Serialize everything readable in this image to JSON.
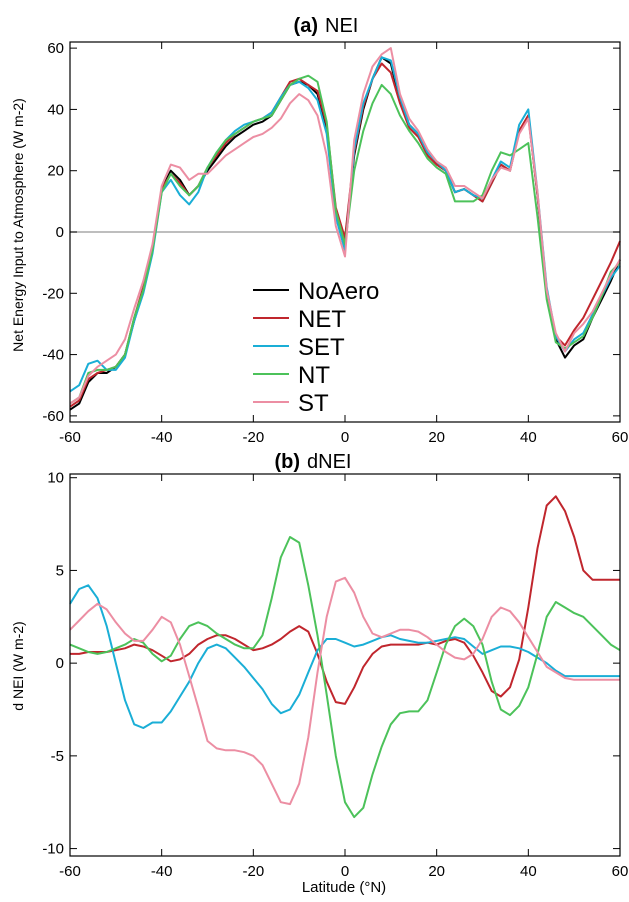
{
  "colors": {
    "NoAero": "#000000",
    "NET": "#c0262d",
    "SET": "#1aaed6",
    "NT": "#4cc25a",
    "ST": "#ec8ea3",
    "zero_line": "#a8a8a8",
    "axis": "#000000"
  },
  "chart_data": [
    {
      "type": "line",
      "title_tag": "(a)",
      "title": "NEI",
      "xlabel": "",
      "ylabel": "Net Energy Input to Atmosphere (W m-2)",
      "xlim": [
        -60,
        60
      ],
      "ylim": [
        -62,
        62
      ],
      "xticks": [
        -60,
        -40,
        -20,
        0,
        20,
        40,
        60
      ],
      "yticks": [
        -60,
        -40,
        -20,
        0,
        20,
        40,
        60
      ],
      "zero_line": true,
      "grid": false,
      "legend": {
        "position": "lower-center",
        "entries": [
          "NoAero",
          "NET",
          "SET",
          "NT",
          "ST"
        ]
      },
      "x": [
        -60,
        -58,
        -56,
        -54,
        -52,
        -50,
        -48,
        -46,
        -44,
        -42,
        -40,
        -38,
        -36,
        -34,
        -32,
        -30,
        -28,
        -26,
        -24,
        -22,
        -20,
        -18,
        -16,
        -14,
        -12,
        -10,
        -8,
        -6,
        -4,
        -2,
        0,
        2,
        4,
        6,
        8,
        10,
        12,
        14,
        16,
        18,
        20,
        22,
        24,
        26,
        28,
        30,
        32,
        34,
        36,
        38,
        40,
        42,
        44,
        46,
        48,
        50,
        52,
        54,
        56,
        58,
        60
      ],
      "series": [
        {
          "name": "NoAero",
          "values": [
            -58,
            -56,
            -49,
            -46,
            -46,
            -44,
            -40,
            -29,
            -19,
            -5,
            14,
            20,
            17,
            12,
            15,
            20,
            24,
            28,
            31,
            33,
            35,
            36,
            38,
            43,
            48,
            49,
            48,
            45,
            34,
            7,
            -3,
            25,
            40,
            50,
            57,
            55,
            43,
            35,
            32,
            25,
            22,
            20,
            13,
            14,
            12,
            10,
            16,
            22,
            20,
            33,
            38,
            12,
            -20,
            -35,
            -41,
            -37,
            -35,
            -28,
            -22,
            -16,
            -9
          ]
        },
        {
          "name": "NET",
          "values": [
            -57,
            -55,
            -48,
            -46,
            -45,
            -44,
            -40,
            -28,
            -18,
            -5,
            14,
            19,
            16,
            12,
            15,
            21,
            25,
            29,
            32,
            34,
            36,
            37,
            39,
            44,
            49,
            50,
            48,
            46,
            35,
            8,
            -2,
            26,
            41,
            50,
            55,
            52,
            42,
            34,
            31,
            25,
            22,
            20,
            13,
            14,
            12,
            10,
            16,
            22,
            20,
            33,
            38,
            12,
            -19,
            -34,
            -37,
            -32,
            -28,
            -22,
            -16,
            -10,
            -3
          ]
        },
        {
          "name": "SET",
          "values": [
            -52,
            -50,
            -43,
            -42,
            -45,
            -45,
            -41,
            -29,
            -20,
            -7,
            13,
            17,
            12,
            9,
            13,
            21,
            26,
            30,
            33,
            35,
            36,
            37,
            39,
            44,
            48,
            49,
            47,
            43,
            32,
            5,
            -6,
            27,
            42,
            50,
            57,
            56,
            44,
            35,
            32,
            26,
            23,
            20,
            13,
            14,
            12,
            11,
            17,
            23,
            21,
            35,
            40,
            13,
            -18,
            -34,
            -39,
            -35,
            -33,
            -27,
            -21,
            -15,
            -11
          ]
        },
        {
          "name": "NT",
          "values": [
            -56,
            -54,
            -46,
            -45,
            -45,
            -44,
            -40,
            -28,
            -19,
            -6,
            13,
            19,
            15,
            12,
            15,
            21,
            26,
            30,
            32,
            34,
            36,
            37,
            38,
            43,
            48,
            50,
            51,
            49,
            36,
            7,
            -4,
            20,
            33,
            42,
            48,
            45,
            38,
            33,
            29,
            24,
            21,
            19,
            10,
            10,
            10,
            12,
            20,
            26,
            25,
            27,
            29,
            5,
            -22,
            -36,
            -38,
            -36,
            -34,
            -28,
            -21,
            -13,
            -10
          ]
        },
        {
          "name": "ST",
          "values": [
            -56,
            -54,
            -47,
            -44,
            -42,
            -40,
            -35,
            -25,
            -16,
            -4,
            15,
            22,
            21,
            17,
            19,
            19,
            22,
            25,
            27,
            29,
            31,
            32,
            34,
            37,
            42,
            45,
            43,
            38,
            25,
            2,
            -8,
            30,
            45,
            54,
            58,
            60,
            45,
            37,
            33,
            27,
            23,
            21,
            15,
            15,
            13,
            11,
            17,
            21,
            20,
            32,
            37,
            13,
            -19,
            -33,
            -39,
            -33,
            -30,
            -26,
            -20,
            -14,
            -9
          ]
        }
      ]
    },
    {
      "type": "line",
      "title_tag": "(b)",
      "title": "dNEI",
      "xlabel": "Latitude (°N)",
      "ylabel": "d NEI (W m-2)",
      "xlim": [
        -60,
        60
      ],
      "ylim": [
        -10.4,
        10.2
      ],
      "xticks": [
        -60,
        -40,
        -20,
        0,
        20,
        40,
        60
      ],
      "yticks": [
        -10,
        -5,
        0,
        5,
        10
      ],
      "zero_line": false,
      "grid": false,
      "x": [
        -60,
        -58,
        -56,
        -54,
        -52,
        -50,
        -48,
        -46,
        -44,
        -42,
        -40,
        -38,
        -36,
        -34,
        -32,
        -30,
        -28,
        -26,
        -24,
        -22,
        -20,
        -18,
        -16,
        -14,
        -12,
        -10,
        -8,
        -6,
        -4,
        -2,
        0,
        2,
        4,
        6,
        8,
        10,
        12,
        14,
        16,
        18,
        20,
        22,
        24,
        26,
        28,
        30,
        32,
        34,
        36,
        38,
        40,
        42,
        44,
        46,
        48,
        50,
        52,
        54,
        56,
        58,
        60
      ],
      "series": [
        {
          "name": "NET",
          "values": [
            0.5,
            0.5,
            0.6,
            0.6,
            0.6,
            0.7,
            0.8,
            1.0,
            0.9,
            0.7,
            0.4,
            0.1,
            0.2,
            0.5,
            1.0,
            1.3,
            1.5,
            1.5,
            1.3,
            1.0,
            0.7,
            0.8,
            1.0,
            1.3,
            1.7,
            2.0,
            1.7,
            0.5,
            -1.0,
            -2.1,
            -2.2,
            -1.3,
            -0.2,
            0.5,
            0.9,
            1.0,
            1.0,
            1.0,
            1.0,
            1.1,
            1.0,
            1.2,
            1.3,
            1.1,
            0.4,
            -0.5,
            -1.5,
            -1.8,
            -1.3,
            0.2,
            3.0,
            6.2,
            8.5,
            9.0,
            8.2,
            6.8,
            5.0,
            4.5,
            4.5,
            4.5,
            4.5
          ]
        },
        {
          "name": "SET",
          "values": [
            3.2,
            4.0,
            4.2,
            3.5,
            2.0,
            0.0,
            -2.0,
            -3.3,
            -3.5,
            -3.2,
            -3.2,
            -2.6,
            -1.8,
            -1.0,
            0.0,
            0.8,
            1.0,
            0.8,
            0.3,
            -0.2,
            -0.8,
            -1.4,
            -2.2,
            -2.7,
            -2.5,
            -1.7,
            -0.5,
            0.7,
            1.3,
            1.3,
            1.1,
            0.9,
            1.0,
            1.2,
            1.4,
            1.5,
            1.3,
            1.2,
            1.1,
            1.1,
            1.2,
            1.3,
            1.4,
            1.3,
            0.9,
            0.5,
            0.7,
            0.9,
            0.9,
            0.8,
            0.6,
            0.3,
            0.0,
            -0.4,
            -0.7,
            -0.7,
            -0.7,
            -0.7,
            -0.7,
            -0.7,
            -0.7
          ]
        },
        {
          "name": "NT",
          "values": [
            1.0,
            0.8,
            0.6,
            0.5,
            0.6,
            0.8,
            1.0,
            1.3,
            1.1,
            0.5,
            0.1,
            0.4,
            1.3,
            2.0,
            2.2,
            2.0,
            1.6,
            1.3,
            1.0,
            0.8,
            0.8,
            1.5,
            3.5,
            5.7,
            6.8,
            6.5,
            4.2,
            1.5,
            -1.7,
            -5.0,
            -7.5,
            -8.3,
            -7.8,
            -6.0,
            -4.5,
            -3.3,
            -2.7,
            -2.6,
            -2.6,
            -2.0,
            -0.5,
            1.0,
            2.0,
            2.4,
            2.0,
            1.0,
            -1.0,
            -2.5,
            -2.8,
            -2.3,
            -1.3,
            0.5,
            2.5,
            3.3,
            3.0,
            2.7,
            2.5,
            2.0,
            1.5,
            1.0,
            0.7
          ]
        },
        {
          "name": "ST",
          "values": [
            1.8,
            2.3,
            2.8,
            3.2,
            2.9,
            2.2,
            1.6,
            1.2,
            1.2,
            1.8,
            2.5,
            2.2,
            1.0,
            -0.7,
            -2.4,
            -4.2,
            -4.6,
            -4.7,
            -4.7,
            -4.8,
            -5.0,
            -5.5,
            -6.5,
            -7.5,
            -7.6,
            -6.5,
            -4.0,
            -0.5,
            2.5,
            4.4,
            4.6,
            3.8,
            2.5,
            1.6,
            1.4,
            1.6,
            1.8,
            1.8,
            1.7,
            1.4,
            1.0,
            0.6,
            0.3,
            0.2,
            0.5,
            1.3,
            2.5,
            3.0,
            2.8,
            2.2,
            1.4,
            0.6,
            -0.2,
            -0.5,
            -0.8,
            -0.9,
            -0.9,
            -0.9,
            -0.9,
            -0.9,
            -0.9
          ]
        }
      ]
    }
  ]
}
